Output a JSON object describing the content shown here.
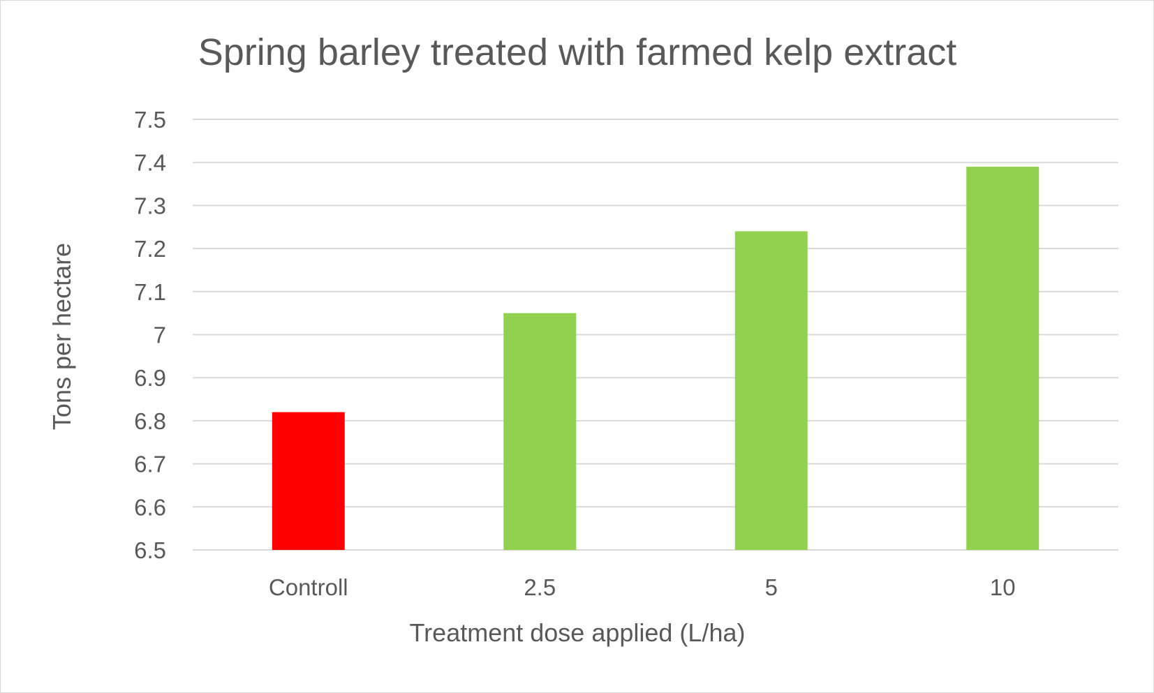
{
  "chart_data": {
    "type": "bar",
    "title": "Spring barley treated with farmed kelp extract",
    "xlabel": "Treatment dose applied (L/ha)",
    "ylabel": "Tons per hectare",
    "categories": [
      "Controll",
      "2.5",
      "5",
      "10"
    ],
    "values": [
      6.82,
      7.05,
      7.24,
      7.39
    ],
    "bar_colors": [
      "#ff0000",
      "#92d050",
      "#92d050",
      "#92d050"
    ],
    "ylim": [
      6.5,
      7.5
    ],
    "yticks": [
      "6.5",
      "6.6",
      "6.7",
      "6.8",
      "6.9",
      "7",
      "7.1",
      "7.2",
      "7.3",
      "7.4",
      "7.5"
    ],
    "grid": true,
    "legend": "none"
  }
}
